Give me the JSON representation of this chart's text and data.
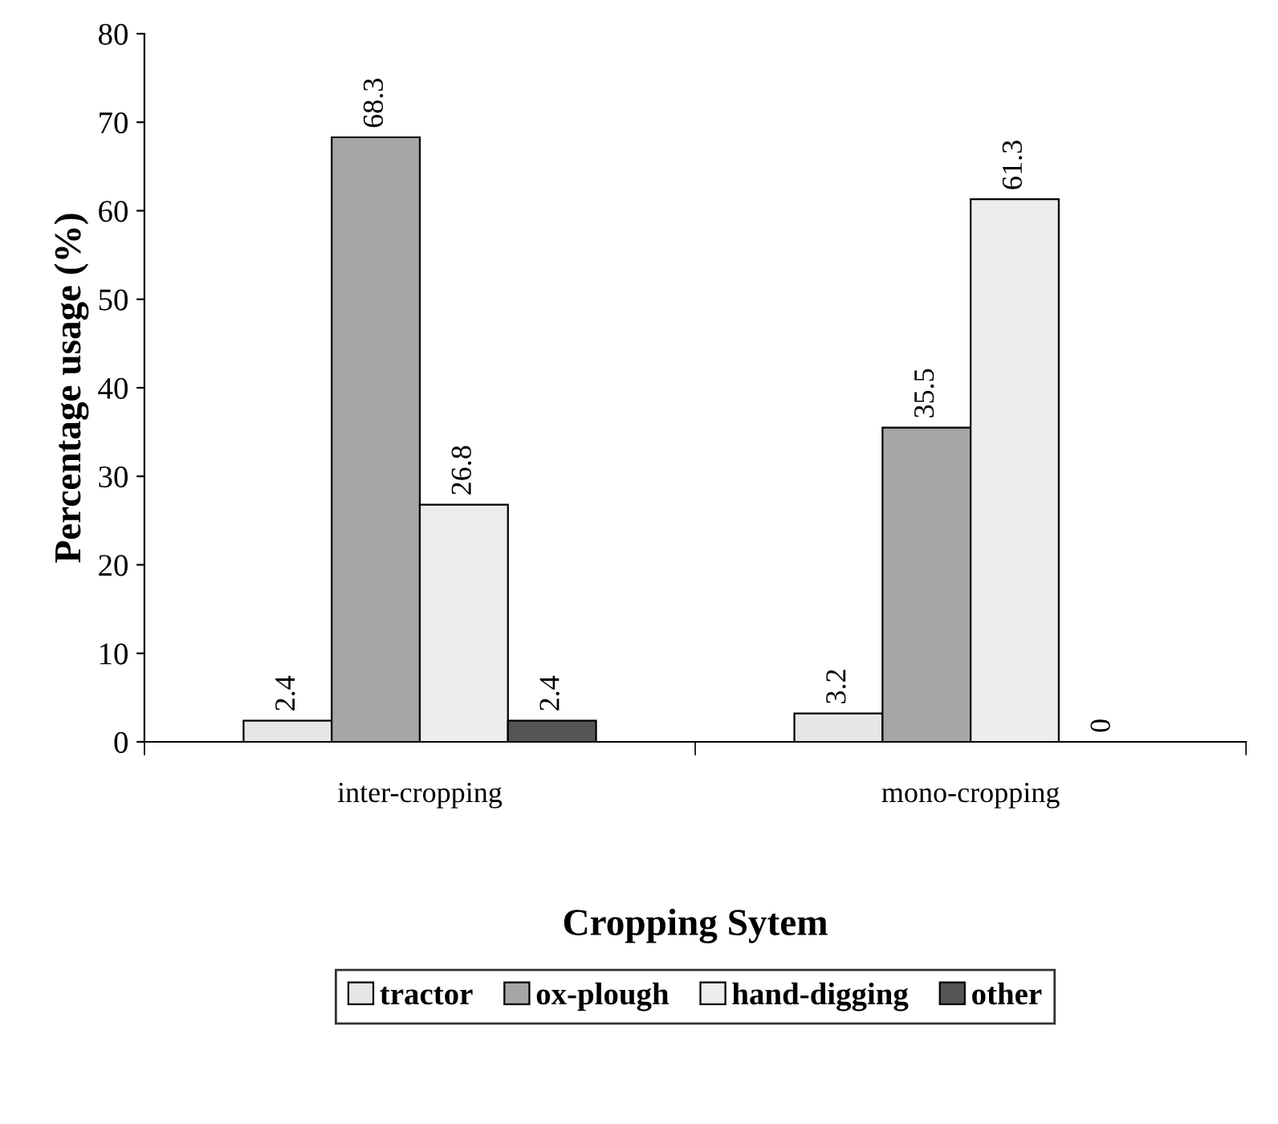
{
  "chart_data": {
    "type": "bar",
    "xlabel": "Cropping Sytem",
    "ylabel": "Percentage usage (%)",
    "categories": [
      "inter-cropping",
      "mono-cropping"
    ],
    "series": [
      {
        "name": "tractor",
        "color": "#e6e6e6",
        "values": [
          2.4,
          3.2
        ]
      },
      {
        "name": "ox-plough",
        "color": "#a6a6a6",
        "values": [
          68.3,
          35.5
        ]
      },
      {
        "name": "hand-digging",
        "color": "#ededed",
        "values": [
          26.8,
          61.3
        ]
      },
      {
        "name": "other",
        "color": "#555555",
        "values": [
          2.4,
          0
        ]
      }
    ],
    "ylim": [
      0,
      80
    ],
    "yticks": [
      0,
      10,
      20,
      30,
      40,
      50,
      60,
      70,
      80
    ],
    "data_labels": true,
    "legend": "bottom",
    "grid": false
  }
}
